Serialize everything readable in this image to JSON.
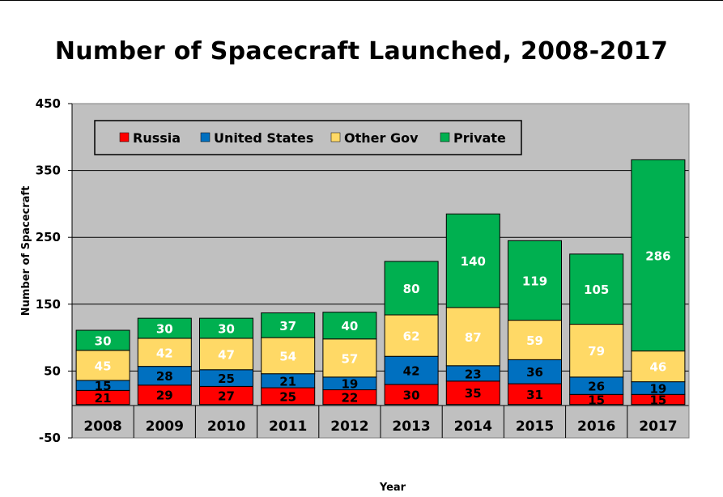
{
  "chart_data": {
    "type": "bar",
    "stacked": true,
    "title": "Number of Spacecraft Launched, 2008-2017",
    "xlabel": "Year",
    "ylabel": "Number of Spacecraft",
    "ylim": [
      -50,
      450
    ],
    "yticks": [
      450,
      350,
      250,
      150,
      50,
      -50
    ],
    "grid": true,
    "legend": "top-left",
    "categories": [
      "2008",
      "2009",
      "2010",
      "2011",
      "2012",
      "2013",
      "2014",
      "2015",
      "2016",
      "2017"
    ],
    "series": [
      {
        "name": "Russia",
        "color": "#ff0000",
        "label_color": "#000000",
        "values": [
          21,
          29,
          27,
          25,
          22,
          30,
          35,
          31,
          15,
          15
        ]
      },
      {
        "name": "United States",
        "color": "#0070c0",
        "label_color": "#000000",
        "values": [
          15,
          28,
          25,
          21,
          19,
          42,
          23,
          36,
          26,
          19
        ]
      },
      {
        "name": "Other Gov",
        "color": "#ffd966",
        "label_color": "#ffffff",
        "values": [
          45,
          42,
          47,
          54,
          57,
          62,
          87,
          59,
          79,
          46
        ]
      },
      {
        "name": "Private",
        "color": "#00b050",
        "label_color": "#ffffff",
        "values": [
          30,
          30,
          30,
          37,
          40,
          80,
          140,
          119,
          105,
          286
        ]
      }
    ],
    "plot_background": "#c0c0c0",
    "category_band_background": "#c0c0c0"
  }
}
